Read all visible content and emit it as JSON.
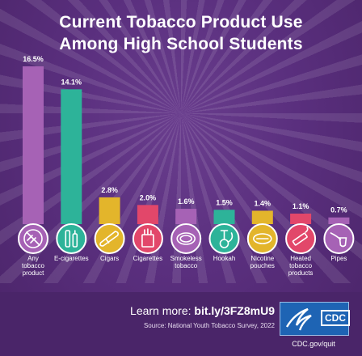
{
  "title_line1": "Current Tobacco Product Use",
  "title_line2": "Among High School Students",
  "chart_data": {
    "type": "bar",
    "categories": [
      {
        "lines": [
          "Any",
          "tobacco",
          "product"
        ],
        "icon": "ban-icon",
        "color": "#a662b5"
      },
      {
        "lines": [
          "E-cigarettes"
        ],
        "icon": "e-cigarette-icon",
        "color": "#2db399"
      },
      {
        "lines": [
          "Cigars"
        ],
        "icon": "cigar-icon",
        "color": "#e3b52b"
      },
      {
        "lines": [
          "Cigarettes"
        ],
        "icon": "cigarette-pack-icon",
        "color": "#e2476a"
      },
      {
        "lines": [
          "Smokeless",
          "tobacco"
        ],
        "icon": "tin-icon",
        "color": "#a662b5"
      },
      {
        "lines": [
          "Hookah"
        ],
        "icon": "hookah-icon",
        "color": "#2db399"
      },
      {
        "lines": [
          "Nicotine",
          "pouches"
        ],
        "icon": "pouch-icon",
        "color": "#e3b52b"
      },
      {
        "lines": [
          "Heated",
          "tobacco",
          "products"
        ],
        "icon": "heated-tobacco-icon",
        "color": "#e2476a"
      },
      {
        "lines": [
          "Pipes"
        ],
        "icon": "pipe-icon",
        "color": "#a662b5"
      }
    ],
    "values": [
      16.5,
      14.1,
      2.8,
      2.0,
      1.6,
      1.5,
      1.4,
      1.1,
      0.7
    ],
    "value_labels": [
      "16.5%",
      "14.1%",
      "2.8%",
      "2.0%",
      "1.6%",
      "1.5%",
      "1.4%",
      "1.1%",
      "0.7%"
    ],
    "ylim": [
      0,
      16.5
    ]
  },
  "footer": {
    "learn_prefix": "Learn more: ",
    "learn_link": "bit.ly/3FZ8mU9",
    "source": "Source: National Youth Tobacco Survey, 2022",
    "logo_text": "CDC",
    "url": "CDC.gov/quit"
  }
}
